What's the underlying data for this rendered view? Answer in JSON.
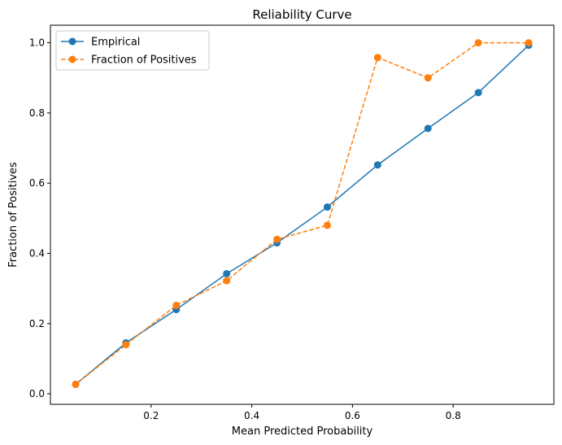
{
  "chart_data": {
    "type": "line",
    "title": "Reliability Curve",
    "xlabel": "Mean Predicted Probability",
    "ylabel": "Fraction of Positives",
    "xlim": [
      0.0,
      1.0
    ],
    "ylim": [
      -0.03,
      1.05
    ],
    "xticks": [
      0.2,
      0.4,
      0.6,
      0.8
    ],
    "yticks": [
      0.0,
      0.2,
      0.4,
      0.6,
      0.8,
      1.0
    ],
    "x": [
      0.05,
      0.15,
      0.25,
      0.35,
      0.45,
      0.55,
      0.65,
      0.75,
      0.85,
      0.95
    ],
    "series": [
      {
        "name": "Empirical",
        "color": "#1f77b4",
        "linestyle": "solid",
        "marker": "circle",
        "values": [
          0.027,
          0.145,
          0.24,
          0.342,
          0.43,
          0.532,
          0.652,
          0.756,
          0.858,
          0.993
        ]
      },
      {
        "name": "Fraction of Positives",
        "color": "#ff7f0e",
        "linestyle": "dashed",
        "marker": "circle",
        "values": [
          0.027,
          0.14,
          0.252,
          0.322,
          0.44,
          0.48,
          0.958,
          0.9,
          1.0,
          1.0
        ]
      }
    ],
    "legend": "top-left",
    "grid": false
  }
}
